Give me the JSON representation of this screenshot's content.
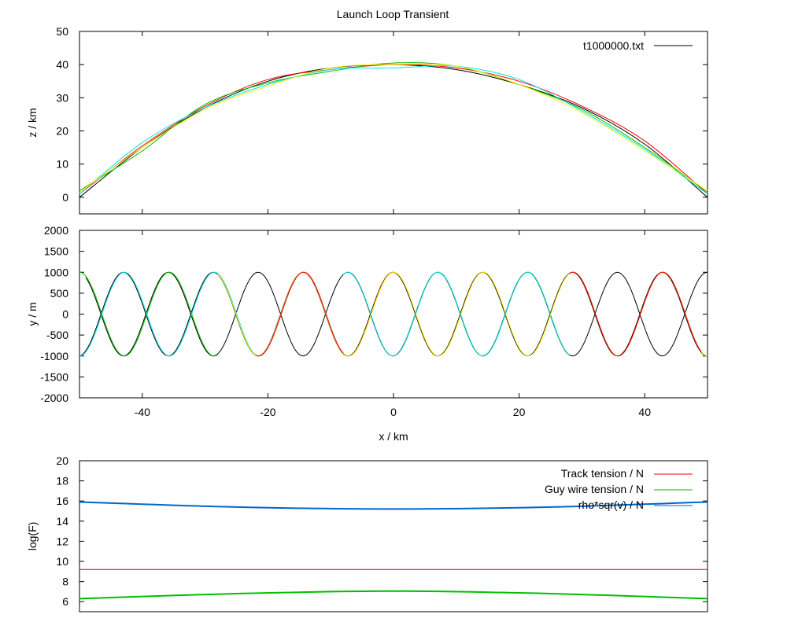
{
  "title": "Launch Loop Transient",
  "colors": {
    "black": "#000000",
    "red": "#ff0000",
    "green": "#00c000",
    "cyan": "#00e5ee",
    "yellow": "#ffee00",
    "blue": "#0066cc"
  },
  "chart_data": [
    {
      "type": "line",
      "panel": "top",
      "ylabel": "z / km",
      "xlim": [
        -50,
        50
      ],
      "ylim": [
        -5,
        50
      ],
      "yticks": [
        "0",
        "10",
        "20",
        "30",
        "40",
        "50"
      ],
      "ytick_values": [
        0,
        10,
        20,
        30,
        40,
        50
      ],
      "legend": {
        "position": "top-right",
        "entries": [
          {
            "label": "t1000000.txt",
            "color": "#000000"
          }
        ]
      },
      "series_description": "Overlapping arch-shaped traces (black, red, green, cyan, yellow) of the loop height profile, peaking near 40 km at x=0 and returning to about 0 km at x=±50 km",
      "series": [
        {
          "color": "black",
          "x": [
            -50,
            -40,
            -30,
            -20,
            -10,
            0,
            10,
            20,
            30,
            40,
            50
          ],
          "z": [
            0,
            15,
            27,
            35,
            39,
            40,
            38.5,
            34,
            27,
            16,
            0
          ]
        },
        {
          "color": "red",
          "x": [
            -50,
            -40,
            -30,
            -20,
            -10,
            0,
            10,
            20,
            30,
            40,
            50
          ],
          "z": [
            1,
            15.5,
            27.5,
            35.5,
            38.5,
            40,
            39,
            35,
            27.5,
            17,
            1
          ]
        },
        {
          "color": "green",
          "x": [
            -50,
            -40,
            -30,
            -20,
            -10,
            0,
            10,
            20,
            30,
            40,
            50
          ],
          "z": [
            2,
            14,
            28,
            34.5,
            38,
            40.5,
            39.5,
            34,
            26.5,
            15,
            1.5
          ]
        },
        {
          "color": "cyan",
          "x": [
            -50,
            -40,
            -30,
            -20,
            -10,
            0,
            10,
            20,
            30,
            40,
            50
          ],
          "z": [
            1,
            16.5,
            27,
            34,
            38.5,
            39,
            39.5,
            35.5,
            26,
            14.5,
            1
          ]
        },
        {
          "color": "yellow",
          "x": [
            -50,
            -40,
            -30,
            -20,
            -10,
            0,
            10,
            20,
            30,
            40,
            50
          ],
          "z": [
            1.5,
            15,
            26.5,
            33.5,
            39,
            40,
            39.5,
            34,
            25.5,
            14,
            2
          ]
        }
      ]
    },
    {
      "type": "line",
      "panel": "middle",
      "xlabel": "x / km",
      "ylabel": "y / m",
      "xlim": [
        -50,
        50
      ],
      "ylim": [
        -2000,
        2000
      ],
      "xticks": [
        "-40",
        "-20",
        "0",
        "20",
        "40"
      ],
      "xtick_values": [
        -40,
        -20,
        0,
        20,
        40
      ],
      "yticks": [
        "-2000",
        "-1500",
        "-1000",
        "-500",
        "0",
        "500",
        "1000",
        "1500",
        "2000"
      ],
      "ytick_values": [
        -2000,
        -1500,
        -1000,
        -500,
        0,
        500,
        1000,
        1500,
        2000
      ],
      "series_description": "Sinusoidal lateral displacement traces of amplitude 1000 m and wavelength about 14.3 km, phase-shifted copies in several colours",
      "amplitude": 1000,
      "wavelength_km": 14.3,
      "segments": [
        {
          "color": "black",
          "x0": -50,
          "x1": 50,
          "peak_x": -43
        },
        {
          "color": "black",
          "x0": -49,
          "x1": 50,
          "trough_x": -43
        },
        {
          "color": "green",
          "x0": -50,
          "x1": -28,
          "peak_x": -50
        },
        {
          "color": "cyan",
          "x0": -50,
          "x1": -22,
          "trough_x": -50
        },
        {
          "color": "yellow",
          "x0": -28,
          "x1": -8,
          "trough_x": -21.5
        },
        {
          "color": "red",
          "x0": -22,
          "x1": 0,
          "peak_x": -14.3
        },
        {
          "color": "yellow",
          "x0": -8,
          "x1": 22,
          "peak_x": 0
        },
        {
          "color": "green",
          "x0": 0,
          "x1": 28,
          "peak_x": 7.1
        },
        {
          "color": "cyan",
          "x0": -8,
          "x1": 28,
          "peak_x": 21.4
        },
        {
          "color": "yellow",
          "x0": 22,
          "x1": 50,
          "peak_x": 28.6
        },
        {
          "color": "red",
          "x0": 28,
          "x1": 49,
          "peak_x": 42.9
        }
      ]
    },
    {
      "type": "line",
      "panel": "bottom",
      "ylabel": "log(F)",
      "xlim": [
        -50,
        50
      ],
      "ylim": [
        5,
        20
      ],
      "yticks": [
        "6",
        "8",
        "10",
        "12",
        "14",
        "16",
        "18",
        "20"
      ],
      "ytick_values": [
        6,
        8,
        10,
        12,
        14,
        16,
        18,
        20
      ],
      "legend": {
        "position": "top-right",
        "entries": [
          {
            "label": "Track tension / N",
            "color": "#ff0000"
          },
          {
            "label": "Guy wire tension / N",
            "color": "#00c000"
          },
          {
            "label": "rho*sqr(v) / N",
            "color": "#0066cc"
          }
        ]
      },
      "series": [
        {
          "name": "Track tension / N",
          "x": [
            -50,
            0,
            50
          ],
          "y": [
            9.2,
            9.2,
            9.2
          ]
        },
        {
          "name": "Guy wire tension / N",
          "x": [
            -50,
            -25,
            0,
            25,
            50
          ],
          "y": [
            6.3,
            6.8,
            7.05,
            6.8,
            6.3
          ]
        },
        {
          "name": "rho*sqr(v) / N",
          "x": [
            -50,
            -25,
            0,
            25,
            50
          ],
          "y": [
            15.9,
            15.4,
            15.2,
            15.4,
            15.9
          ]
        }
      ]
    }
  ]
}
